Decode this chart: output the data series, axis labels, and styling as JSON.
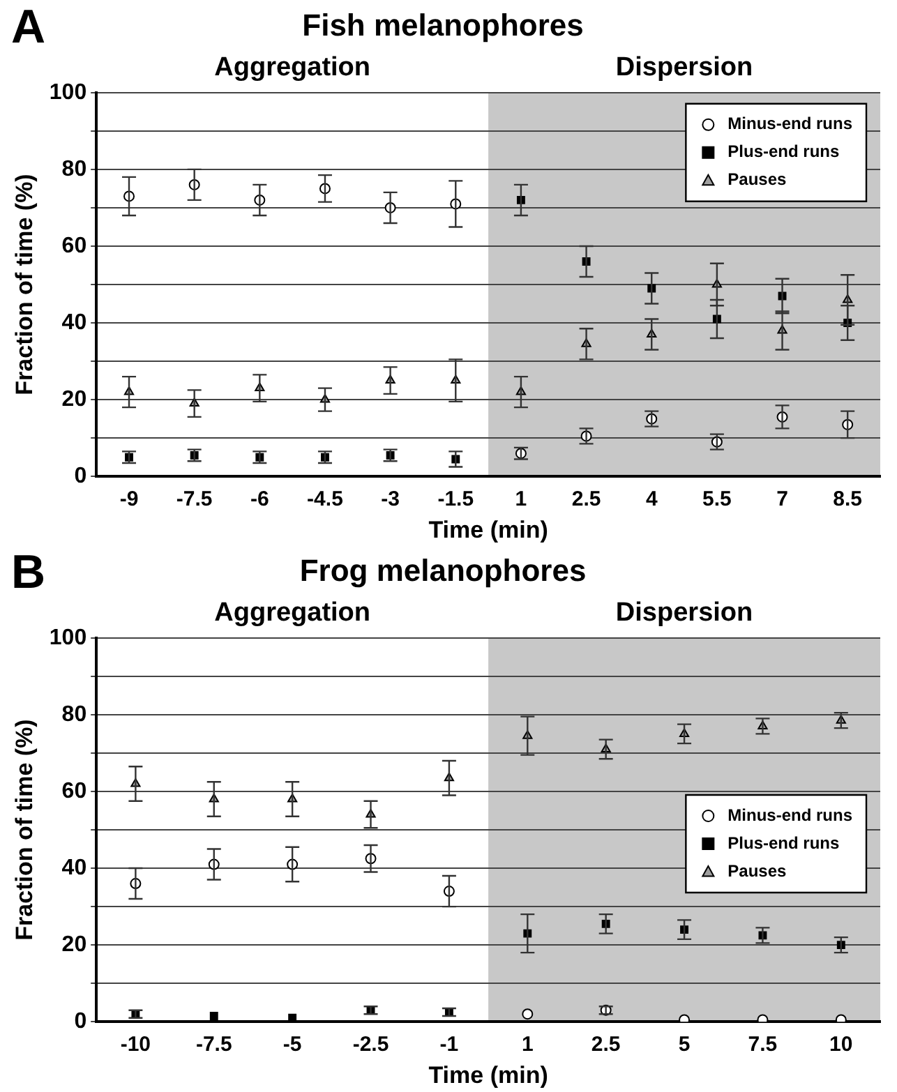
{
  "chart_data": [
    {
      "type": "scatter",
      "title": "Fish melanophores",
      "xlabel": "Time (min)",
      "ylabel": "Fraction of time (%)",
      "annotations": [
        "A",
        "Aggregation"
      ],
      "categories": [
        "-9",
        "-7.5",
        "-6",
        "-4.5",
        "-3",
        "-1.5",
        "1",
        "2.5",
        "4",
        "5.5",
        "7",
        "8.5"
      ],
      "series": [
        {
          "name": "Minus-end runs",
          "color": "#ffffff",
          "marker": "circle",
          "values": [
            73,
            76,
            72,
            75,
            70,
            71,
            6,
            10.5,
            15,
            9,
            15.5,
            13.5
          ],
          "errors": [
            5,
            4,
            4,
            3.5,
            4,
            6,
            1.5,
            2,
            2,
            2,
            3,
            3.5
          ]
        },
        {
          "name": "Plus-end runs",
          "color": "#000000",
          "marker": "square",
          "values": [
            5,
            5.5,
            5,
            5,
            5.5,
            4.5,
            72,
            56,
            49,
            41,
            47,
            40
          ],
          "errors": [
            1.5,
            1.5,
            1.5,
            1.5,
            1.5,
            2,
            4,
            4,
            4,
            5,
            4.5,
            4.5
          ]
        },
        {
          "name": "Pauses",
          "color": "#a0a0a0",
          "marker": "triangle",
          "values": [
            22,
            19,
            23,
            20,
            25,
            25,
            22,
            34.5,
            37,
            50,
            38,
            46
          ],
          "errors": [
            4,
            3.5,
            3.5,
            3,
            3.5,
            5.5,
            4,
            4,
            4,
            5.5,
            5,
            6.5
          ]
        }
      ],
      "bands": [
        {
          "axis": "x",
          "from": "1",
          "to": "8.5",
          "label": "Dispersion",
          "color": "#c8c8c8"
        }
      ],
      "ylim": [
        0,
        100
      ],
      "yticks": [
        0,
        {
          "value": 10,
          "label": null
        },
        20,
        {
          "value": 30,
          "label": null
        },
        40,
        {
          "value": 50,
          "label": null
        },
        60,
        {
          "value": 70,
          "label": null
        },
        80,
        {
          "value": 90,
          "label": null
        },
        100
      ],
      "grid": "y",
      "legend": "top right"
    },
    {
      "type": "scatter",
      "title": "Frog melanophores",
      "xlabel": "Time (min)",
      "ylabel": "Fraction of time (%)",
      "annotations": [
        "B",
        "Aggregation"
      ],
      "categories": [
        "-10",
        "-7.5",
        "-5",
        "-2.5",
        "-1",
        "1",
        "2.5",
        "5",
        "7.5",
        "10"
      ],
      "series": [
        {
          "name": "Minus-end runs",
          "color": "#ffffff",
          "marker": "circle",
          "values": [
            36,
            41,
            41,
            42.5,
            34,
            2,
            3,
            0.5,
            0.5,
            0.5
          ],
          "errors": [
            4,
            4,
            4.5,
            3.5,
            4,
            null,
            1,
            null,
            null,
            null
          ]
        },
        {
          "name": "Plus-end runs",
          "color": "#000000",
          "marker": "square",
          "values": [
            2,
            1.5,
            1,
            3,
            2.5,
            23,
            25.5,
            24,
            22.5,
            20
          ],
          "errors": [
            1,
            null,
            null,
            1,
            1,
            5,
            2.5,
            2.5,
            2,
            2
          ]
        },
        {
          "name": "Pauses",
          "color": "#a0a0a0",
          "marker": "triangle",
          "values": [
            62,
            58,
            58,
            54,
            63.5,
            74.5,
            71,
            75,
            77,
            78.5
          ],
          "errors": [
            4.5,
            4.5,
            4.5,
            3.5,
            4.5,
            5,
            2.5,
            2.5,
            2,
            2
          ]
        }
      ],
      "bands": [
        {
          "axis": "x",
          "from": "1",
          "to": "10",
          "label": "Dispersion",
          "color": "#c8c8c8"
        }
      ],
      "ylim": [
        0,
        100
      ],
      "yticks": [
        0,
        {
          "value": 10,
          "label": null
        },
        20,
        {
          "value": 30,
          "label": null
        },
        40,
        {
          "value": 50,
          "label": null
        },
        60,
        {
          "value": 70,
          "label": null
        },
        80,
        {
          "value": 90,
          "label": null
        },
        100
      ],
      "grid": "y",
      "legend": "right"
    }
  ]
}
